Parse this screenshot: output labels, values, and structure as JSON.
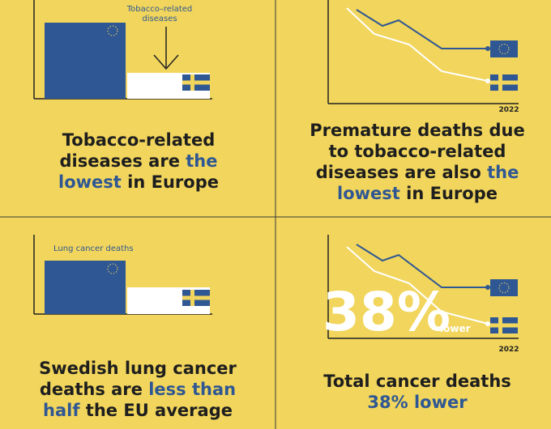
{
  "panels": [
    {
      "annotation": [
        "Tobacco–related",
        "diseases"
      ],
      "caption": [
        {
          "text": "Tobacco-related diseases are "
        },
        {
          "text": "the lowest",
          "color": "#2f5793"
        },
        {
          "text": " in Europe"
        }
      ]
    },
    {
      "year": "2022",
      "caption": [
        {
          "text": "Premature deaths due to tobacco-related diseases are also "
        },
        {
          "text": "the lowest",
          "color": "#2f5793"
        },
        {
          "text": " in Europe"
        }
      ]
    },
    {
      "annotation": [
        "Lung cancer deaths"
      ],
      "caption": [
        {
          "text": "Swedish lung cancer deaths are "
        },
        {
          "text": "less than half",
          "color": "#2f5793"
        },
        {
          "text": " the EU average"
        }
      ]
    },
    {
      "big_number": "38%",
      "big_label": "lower",
      "year": "2022",
      "caption": [
        {
          "text": "Total cancer deaths "
        },
        {
          "text": "38% lower",
          "color": "#2f5793"
        }
      ]
    }
  ]
}
